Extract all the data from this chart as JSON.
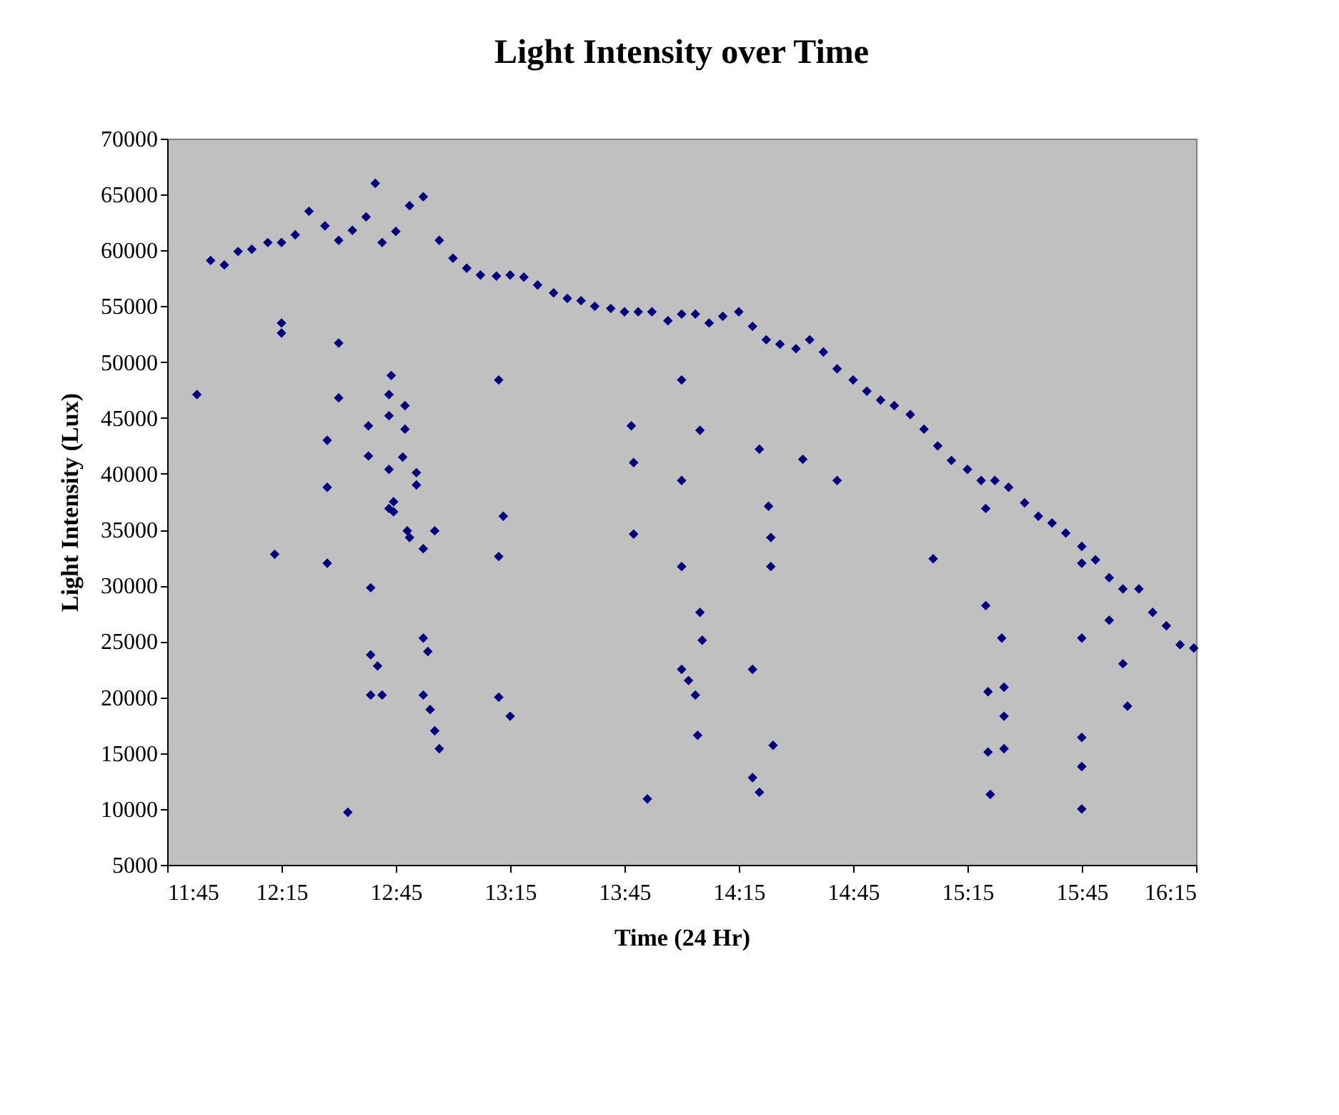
{
  "chart_data": {
    "type": "scatter",
    "title": "Light Intensity over Time",
    "xlabel": "Time (24 Hr)",
    "ylabel": "Light Intensity (Lux)",
    "xlim": [
      11.75,
      16.25
    ],
    "xticks": [
      {
        "value": 11.75,
        "label": "11:45"
      },
      {
        "value": 12.25,
        "label": "12:15"
      },
      {
        "value": 12.75,
        "label": "12:45"
      },
      {
        "value": 13.25,
        "label": "13:15"
      },
      {
        "value": 13.75,
        "label": "13:45"
      },
      {
        "value": 14.25,
        "label": "14:15"
      },
      {
        "value": 14.75,
        "label": "14:45"
      },
      {
        "value": 15.25,
        "label": "15:15"
      },
      {
        "value": 15.75,
        "label": "15:45"
      },
      {
        "value": 16.25,
        "label": "16:15"
      }
    ],
    "ylim": [
      5000,
      70000
    ],
    "yticks": [
      5000,
      10000,
      15000,
      20000,
      25000,
      30000,
      35000,
      40000,
      45000,
      50000,
      55000,
      60000,
      65000,
      70000
    ],
    "grid": false,
    "legend": false,
    "marker": "diamond",
    "series": [
      {
        "color": "#000080",
        "x": [
          11.94,
          12.0,
          12.06,
          12.12,
          12.19,
          12.25,
          12.31,
          12.37,
          12.44,
          12.5,
          12.56,
          12.62,
          12.66,
          12.69,
          12.75,
          12.81,
          12.87,
          12.94,
          13.0,
          13.06,
          13.12,
          13.19,
          13.25,
          13.31,
          13.37,
          13.44,
          13.5,
          13.56,
          13.62,
          13.69,
          13.75,
          13.81,
          13.87,
          13.94,
          14.0,
          14.06,
          14.12,
          14.18,
          14.25,
          14.31,
          14.37,
          14.43,
          14.5,
          14.56,
          14.62,
          14.68,
          14.75,
          14.81,
          14.87,
          14.93,
          15.0,
          15.06,
          15.12,
          15.18,
          15.25,
          15.31,
          15.37,
          15.43,
          15.5,
          15.56,
          15.62,
          15.68,
          15.75,
          15.81,
          15.87,
          15.93,
          16.0,
          16.06,
          16.12,
          16.18,
          16.24,
          11.88,
          12.22,
          12.25,
          12.25,
          12.45,
          12.45,
          12.45,
          12.5,
          12.5,
          12.54,
          12.63,
          12.63,
          12.64,
          12.64,
          12.64,
          12.67,
          12.69,
          12.72,
          12.72,
          12.72,
          12.72,
          12.73,
          12.74,
          12.74,
          12.78,
          12.79,
          12.79,
          12.8,
          12.81,
          12.84,
          12.84,
          12.87,
          12.87,
          12.87,
          12.89,
          12.9,
          12.92,
          12.94,
          12.92,
          13.2,
          13.2,
          13.2,
          13.22,
          13.25,
          13.78,
          13.79,
          13.79,
          14.0,
          14.0,
          14.0,
          14.0,
          14.03,
          14.06,
          14.07,
          14.08,
          14.09,
          14.08,
          14.31,
          14.31,
          14.34,
          14.34,
          14.38,
          14.39,
          14.39,
          14.4,
          14.53,
          14.68,
          15.1,
          15.33,
          15.33,
          15.34,
          15.34,
          15.35,
          15.4,
          15.41,
          15.41,
          15.41,
          15.75,
          15.75,
          15.75,
          15.75,
          15.75,
          15.87,
          15.93,
          15.95,
          13.85
        ],
        "values": [
          59100,
          58700,
          59900,
          60100,
          60700,
          60700,
          61400,
          63500,
          62200,
          60900,
          61800,
          63000,
          66000,
          60700,
          61700,
          64000,
          64800,
          60900,
          59300,
          58400,
          57800,
          57700,
          57800,
          57600,
          56900,
          56200,
          55700,
          55500,
          55000,
          54800,
          54500,
          54500,
          54500,
          53700,
          54300,
          54300,
          53500,
          54100,
          54500,
          53200,
          52000,
          51600,
          51200,
          52000,
          50900,
          49400,
          48400,
          47400,
          46600,
          46100,
          45300,
          44000,
          42500,
          41200,
          40400,
          39400,
          39400,
          38800,
          37400,
          36200,
          35600,
          34700,
          33500,
          32300,
          30700,
          29700,
          29700,
          27600,
          26400,
          24700,
          24400,
          47100,
          32800,
          53500,
          52600,
          43000,
          38800,
          32000,
          51700,
          46800,
          9700,
          44300,
          41600,
          29800,
          23800,
          20200,
          22800,
          20200,
          36900,
          40400,
          45200,
          47100,
          48800,
          37500,
          36600,
          41500,
          44000,
          46100,
          34900,
          34300,
          40100,
          39000,
          33300,
          25300,
          20200,
          24100,
          18900,
          17000,
          15400,
          34900,
          48400,
          32600,
          20000,
          36200,
          18300,
          44300,
          41000,
          34600,
          48400,
          39400,
          31700,
          22500,
          21500,
          20200,
          16600,
          43900,
          25100,
          27600,
          22500,
          12800,
          11500,
          42200,
          37100,
          34300,
          31700,
          15700,
          41300,
          39400,
          32400,
          36900,
          28200,
          20500,
          15100,
          11300,
          25300,
          20900,
          18300,
          15400,
          32000,
          16400,
          13800,
          10000,
          25300,
          26900,
          23000,
          19200,
          10900
        ]
      }
    ]
  }
}
